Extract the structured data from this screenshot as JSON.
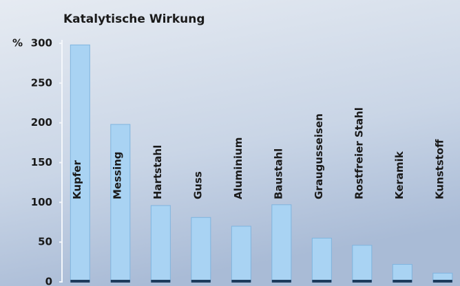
{
  "chart_data": {
    "type": "bar",
    "title": "Katalytische Wirkung",
    "y_label": "%",
    "categories": [
      "Kupfer",
      "Messing",
      "Hartstahl",
      "Guss",
      "Aluminium",
      "Baustahl",
      "Graugusseisen",
      "Rostfreier Stahl",
      "Keramik",
      "Kunststoff"
    ],
    "values": [
      298,
      198,
      96,
      81,
      70,
      97,
      55,
      46,
      22,
      11
    ],
    "color": "#a9d3f3",
    "ylim": [
      0,
      300
    ],
    "yticks": [
      0,
      50,
      100,
      150,
      200,
      250,
      300
    ],
    "grid": false
  }
}
